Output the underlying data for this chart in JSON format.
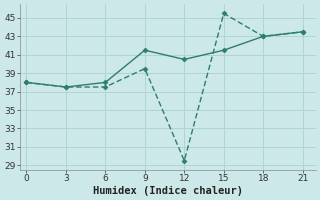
{
  "xlabel": "Humidex (Indice chaleur)",
  "x": [
    0,
    3,
    6,
    9,
    12,
    15,
    18,
    21
  ],
  "line1_y": [
    38.0,
    37.5,
    38.0,
    41.5,
    40.5,
    41.5,
    43.0,
    43.5
  ],
  "line2_y": [
    38.0,
    37.5,
    37.5,
    39.5,
    29.5,
    45.5,
    43.0,
    43.5
  ],
  "line_color": "#2e7d6e",
  "bg_color": "#cce8e8",
  "grid_color": "#b0d4d4",
  "ylim": [
    28.5,
    46.5
  ],
  "xlim": [
    -0.5,
    22
  ],
  "yticks": [
    29,
    31,
    33,
    35,
    37,
    39,
    41,
    43,
    45
  ],
  "xticks": [
    0,
    3,
    6,
    9,
    12,
    15,
    18,
    21
  ],
  "tick_fontsize": 6.5,
  "xlabel_fontsize": 7.5
}
